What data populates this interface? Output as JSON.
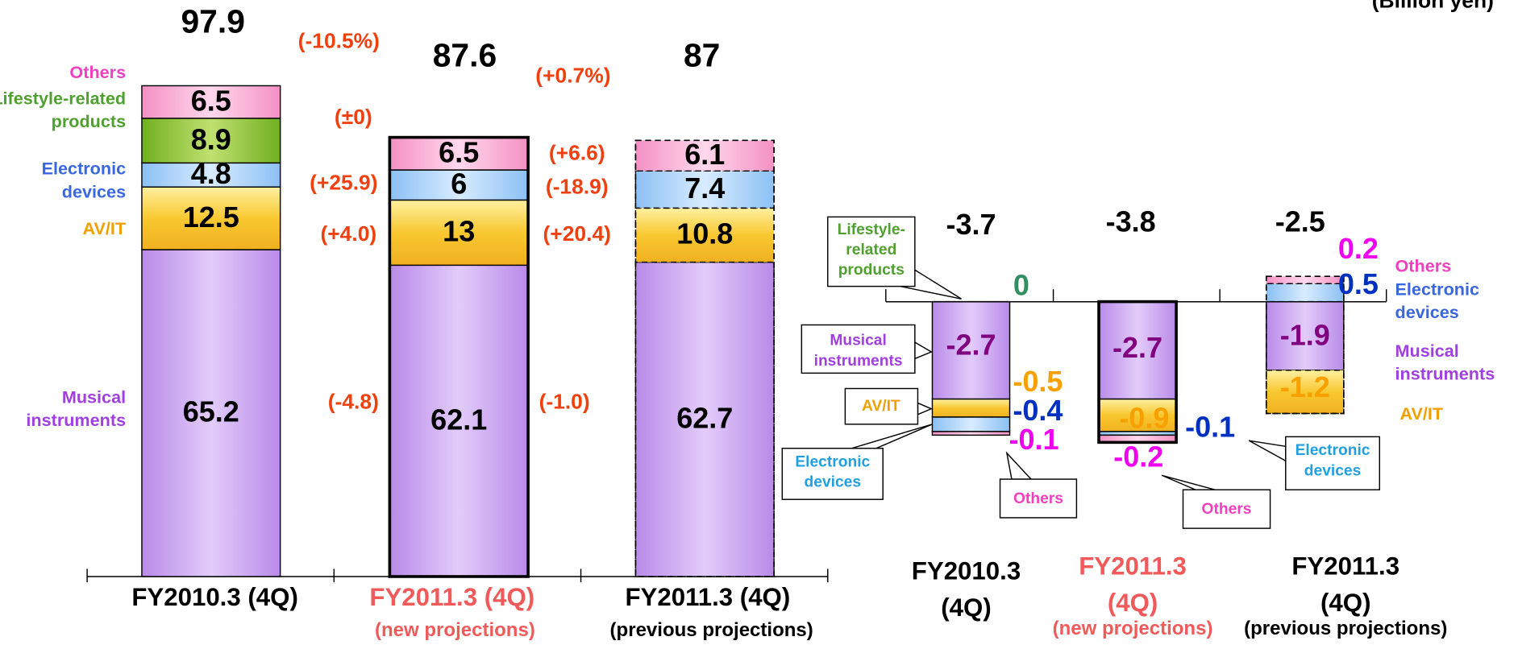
{
  "unit": "(Billion yen)",
  "chart_data": [
    {
      "type": "stacked-bar",
      "categories": [
        "FY2010.3 (4Q)",
        "FY2011.3 (4Q)",
        "FY2011.3 (4Q)"
      ],
      "category_notes": [
        null,
        "(new projections)",
        "(previous projections)"
      ],
      "category_colors": [
        "#000000",
        "#f05a5a",
        "#000000"
      ],
      "bar_styles": [
        "plain",
        "solid",
        "dashed"
      ],
      "ylim": [
        0,
        115
      ],
      "series": [
        {
          "name": "Musical instruments",
          "color": "#c9a0f2",
          "label_color": "#a040e0",
          "values": [
            65.2,
            62.1,
            62.7
          ]
        },
        {
          "name": "AV/IT",
          "color": "#f8c830",
          "label_color": "#f0a000",
          "values": [
            12.5,
            13.0,
            10.8
          ]
        },
        {
          "name": "Electronic devices",
          "color": "#a8d0f8",
          "label_color": "#3a66e0",
          "values": [
            4.8,
            6.0,
            7.4
          ]
        },
        {
          "name": "Lifestyle-related products",
          "color": "#8cc830",
          "label_color": "#50a030",
          "values": [
            8.9,
            null,
            null
          ]
        },
        {
          "name": "Others",
          "color": "#f8a8d0",
          "label_color": "#f040c0",
          "values": [
            6.5,
            6.5,
            6.1
          ]
        }
      ],
      "totals": [
        97.9,
        87.6,
        87.0
      ],
      "change_labels": [
        "(-10.5%)",
        "(±0)",
        "(+25.9)",
        "(+4.0)",
        "(-4.8)",
        "(+0.7%)",
        "(+6.6)",
        "(-18.9)",
        "(+20.4)",
        "(-1.0)"
      ]
    },
    {
      "type": "stacked-bar",
      "categories": [
        "FY2010.3 (4Q)",
        "FY2011.3 (4Q)",
        "FY2011.3 (4Q)"
      ],
      "category_notes": [
        null,
        "(new projections)",
        "(previous projections)"
      ],
      "category_colors": [
        "#000000",
        "#f05a5a",
        "#000000"
      ],
      "bar_styles": [
        "plain",
        "solid",
        "dashed"
      ],
      "ylim": [
        -5,
        2
      ],
      "series": [
        {
          "name": "Musical instruments",
          "color": "#c9a0f2",
          "label_color": "#800080",
          "values": [
            -2.7,
            -2.7,
            -1.9
          ]
        },
        {
          "name": "AV/IT",
          "color": "#f8c830",
          "label_color": "#f8a000",
          "values": [
            -0.5,
            -0.9,
            -1.2
          ]
        },
        {
          "name": "Electronic devices",
          "color": "#a8d0f8",
          "label_color": "#0030c0",
          "values": [
            -0.4,
            -0.1,
            0.5
          ]
        },
        {
          "name": "Lifestyle-related products",
          "color": "#8cc830",
          "label_color": "#309060",
          "values": [
            0,
            null,
            null
          ]
        },
        {
          "name": "Others",
          "color": "#f8a8d0",
          "label_color": "#f000f0",
          "values": [
            -0.1,
            -0.2,
            0.2
          ]
        }
      ],
      "totals": [
        -3.7,
        -3.8,
        -2.5
      ]
    }
  ]
}
